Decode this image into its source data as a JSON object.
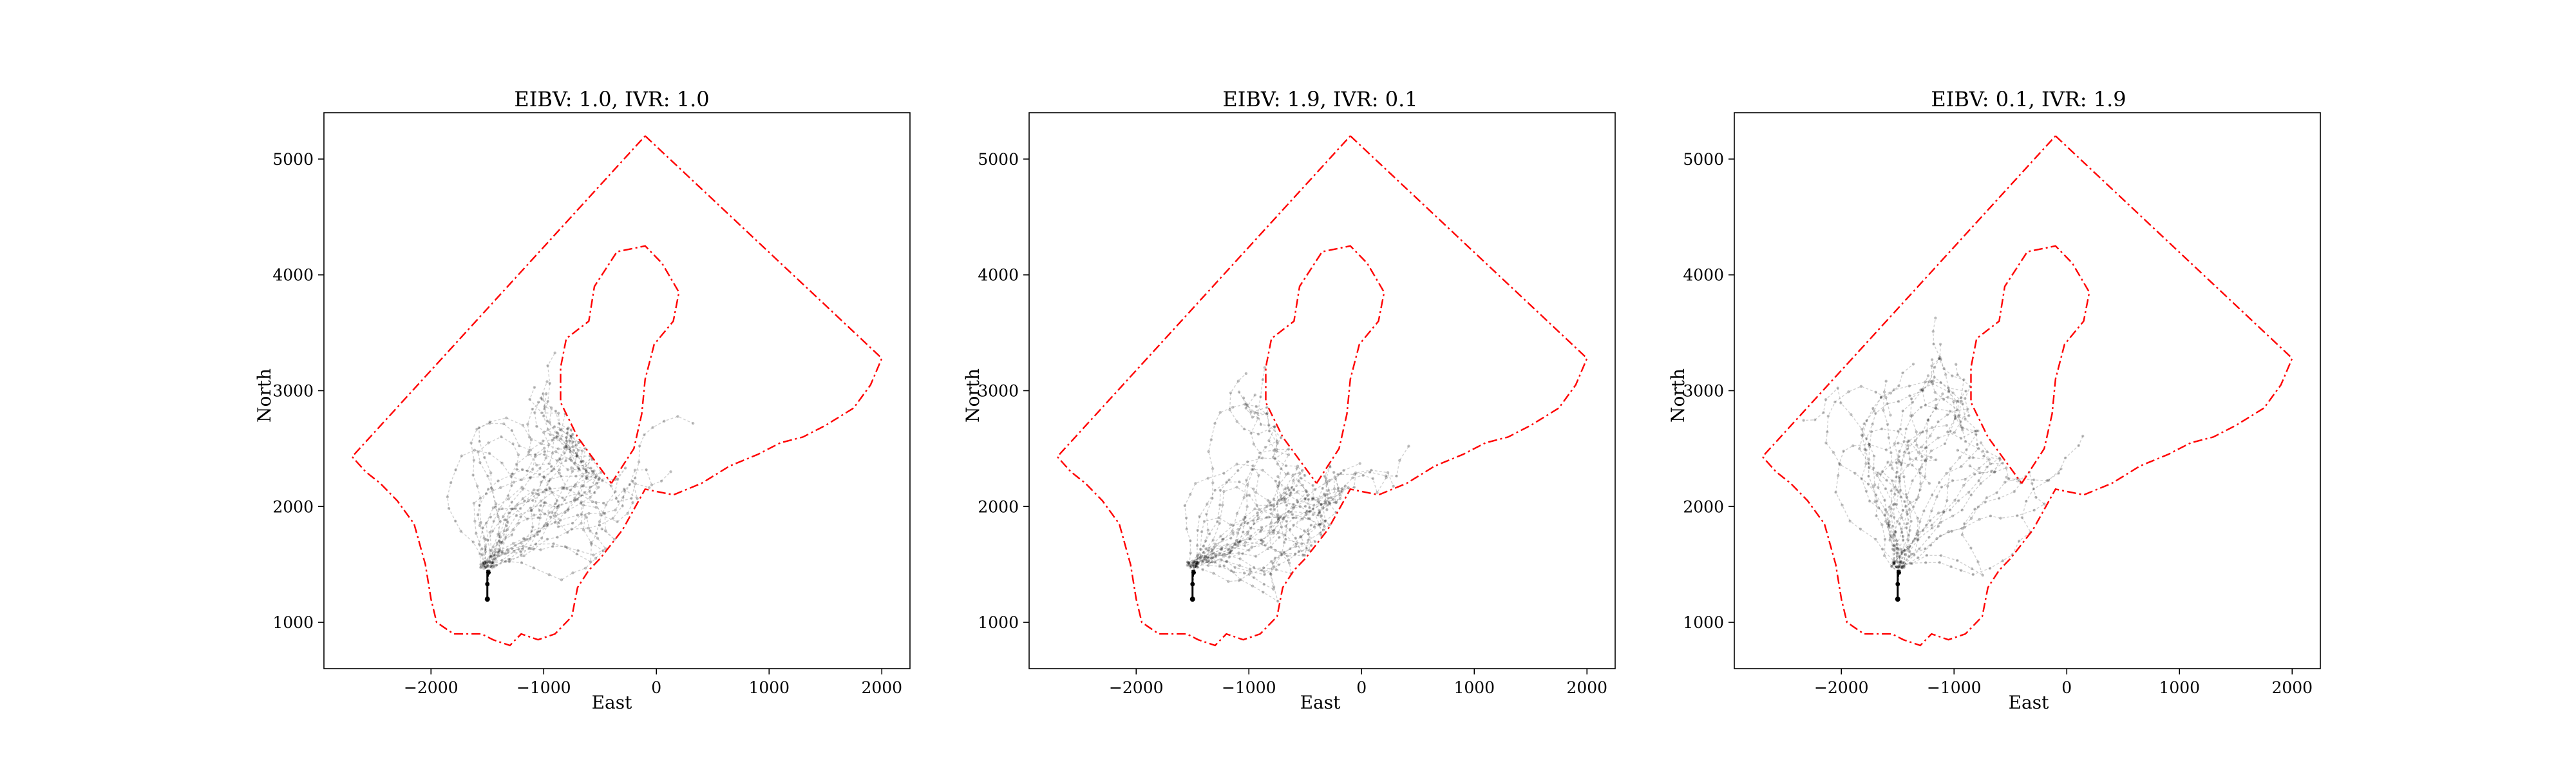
{
  "chart_data": [
    {
      "type": "line",
      "title": "EIBV: 1.0, IVR: 1.0",
      "xlabel": "East",
      "ylabel": "North",
      "xlim": [
        -2950,
        2250
      ],
      "ylim": [
        600,
        5400
      ],
      "xticks": [
        -2000,
        -1000,
        0,
        1000,
        2000
      ],
      "xtick_labels": [
        "−2000",
        "−1000",
        "0",
        "1000",
        "2000"
      ],
      "yticks": [
        1000,
        2000,
        3000,
        4000,
        5000
      ],
      "ytick_labels": [
        "1000",
        "2000",
        "3000",
        "4000",
        "5000"
      ],
      "grid": false,
      "series": [
        {
          "kind": "boundary",
          "color": "#ff0000",
          "style": "dash-dot",
          "points": [
            [
              -100,
              5200
            ],
            [
              2000,
              3280
            ],
            [
              1900,
              3050
            ],
            [
              1750,
              2850
            ],
            [
              1500,
              2700
            ],
            [
              1300,
              2600
            ],
            [
              1100,
              2550
            ],
            [
              900,
              2450
            ],
            [
              650,
              2350
            ],
            [
              400,
              2200
            ],
            [
              150,
              2100
            ],
            [
              -100,
              2150
            ],
            [
              -300,
              1800
            ],
            [
              -500,
              1550
            ],
            [
              -600,
              1450
            ],
            [
              -700,
              1300
            ],
            [
              -750,
              1050
            ],
            [
              -900,
              900
            ],
            [
              -1050,
              850
            ],
            [
              -1200,
              900
            ],
            [
              -1300,
              800
            ],
            [
              -1450,
              850
            ],
            [
              -1550,
              900
            ],
            [
              -1650,
              900
            ],
            [
              -1800,
              900
            ],
            [
              -1950,
              1000
            ],
            [
              -2000,
              1200
            ],
            [
              -2050,
              1500
            ],
            [
              -2150,
              1850
            ],
            [
              -2300,
              2050
            ],
            [
              -2450,
              2200
            ],
            [
              -2580,
              2300
            ],
            [
              -2700,
              2430
            ],
            [
              -100,
              5200
            ]
          ]
        },
        {
          "kind": "boundary",
          "color": "#ff0000",
          "style": "dash-dot",
          "points": [
            [
              -400,
              2200
            ],
            [
              -200,
              2500
            ],
            [
              -130,
              2800
            ],
            [
              -100,
              3100
            ],
            [
              -20,
              3400
            ],
            [
              150,
              3600
            ],
            [
              200,
              3850
            ],
            [
              50,
              4100
            ],
            [
              -100,
              4250
            ],
            [
              -350,
              4200
            ],
            [
              -550,
              3900
            ],
            [
              -600,
              3600
            ],
            [
              -800,
              3450
            ],
            [
              -850,
              3200
            ],
            [
              -850,
              2900
            ],
            [
              -700,
              2600
            ],
            [
              -550,
              2400
            ],
            [
              -400,
              2200
            ]
          ]
        },
        {
          "kind": "trajectories",
          "color": "#000000",
          "seed": 11,
          "count": 28,
          "start": [
            -1500,
            1200
          ],
          "lobes": [
            [
              -1300,
              2300
            ],
            [
              -300,
              2300
            ],
            [
              400,
              2900
            ]
          ]
        }
      ]
    },
    {
      "type": "line",
      "title": "EIBV: 1.9, IVR: 0.1",
      "xlabel": "East",
      "ylabel": "North",
      "xlim": [
        -2950,
        2250
      ],
      "ylim": [
        600,
        5400
      ],
      "xticks": [
        -2000,
        -1000,
        0,
        1000,
        2000
      ],
      "xtick_labels": [
        "−2000",
        "−1000",
        "0",
        "1000",
        "2000"
      ],
      "yticks": [
        1000,
        2000,
        3000,
        4000,
        5000
      ],
      "ytick_labels": [
        "1000",
        "2000",
        "3000",
        "4000",
        "5000"
      ],
      "grid": false,
      "series": [
        {
          "kind": "boundary",
          "color": "#ff0000",
          "style": "dash-dot",
          "points": [
            [
              -100,
              5200
            ],
            [
              2000,
              3280
            ],
            [
              1900,
              3050
            ],
            [
              1750,
              2850
            ],
            [
              1500,
              2700
            ],
            [
              1300,
              2600
            ],
            [
              1100,
              2550
            ],
            [
              900,
              2450
            ],
            [
              650,
              2350
            ],
            [
              400,
              2200
            ],
            [
              150,
              2100
            ],
            [
              -100,
              2150
            ],
            [
              -300,
              1800
            ],
            [
              -500,
              1550
            ],
            [
              -600,
              1450
            ],
            [
              -700,
              1300
            ],
            [
              -750,
              1050
            ],
            [
              -900,
              900
            ],
            [
              -1050,
              850
            ],
            [
              -1200,
              900
            ],
            [
              -1300,
              800
            ],
            [
              -1450,
              850
            ],
            [
              -1550,
              900
            ],
            [
              -1650,
              900
            ],
            [
              -1800,
              900
            ],
            [
              -1950,
              1000
            ],
            [
              -2000,
              1200
            ],
            [
              -2050,
              1500
            ],
            [
              -2150,
              1850
            ],
            [
              -2300,
              2050
            ],
            [
              -2450,
              2200
            ],
            [
              -2580,
              2300
            ],
            [
              -2700,
              2430
            ],
            [
              -100,
              5200
            ]
          ]
        },
        {
          "kind": "boundary",
          "color": "#ff0000",
          "style": "dash-dot",
          "points": [
            [
              -400,
              2200
            ],
            [
              -200,
              2500
            ],
            [
              -130,
              2800
            ],
            [
              -100,
              3100
            ],
            [
              -20,
              3400
            ],
            [
              150,
              3600
            ],
            [
              200,
              3850
            ],
            [
              50,
              4100
            ],
            [
              -100,
              4250
            ],
            [
              -350,
              4200
            ],
            [
              -550,
              3900
            ],
            [
              -600,
              3600
            ],
            [
              -800,
              3450
            ],
            [
              -850,
              3200
            ],
            [
              -850,
              2900
            ],
            [
              -700,
              2600
            ],
            [
              -550,
              2400
            ],
            [
              -400,
              2200
            ]
          ]
        },
        {
          "kind": "trajectories",
          "color": "#000000",
          "seed": 23,
          "count": 28,
          "start": [
            -1500,
            1200
          ],
          "lobes": [
            [
              -1200,
              2250
            ],
            [
              -400,
              2000
            ],
            [
              300,
              2300
            ]
          ]
        }
      ]
    },
    {
      "type": "line",
      "title": "EIBV: 0.1, IVR: 1.9",
      "xlabel": "East",
      "ylabel": "North",
      "xlim": [
        -2950,
        2250
      ],
      "ylim": [
        600,
        5400
      ],
      "xticks": [
        -2000,
        -1000,
        0,
        1000,
        2000
      ],
      "xtick_labels": [
        "−2000",
        "−1000",
        "0",
        "1000",
        "2000"
      ],
      "yticks": [
        1000,
        2000,
        3000,
        4000,
        5000
      ],
      "ytick_labels": [
        "1000",
        "2000",
        "3000",
        "4000",
        "5000"
      ],
      "grid": false,
      "series": [
        {
          "kind": "boundary",
          "color": "#ff0000",
          "style": "dash-dot",
          "points": [
            [
              -100,
              5200
            ],
            [
              2000,
              3280
            ],
            [
              1900,
              3050
            ],
            [
              1750,
              2850
            ],
            [
              1500,
              2700
            ],
            [
              1300,
              2600
            ],
            [
              1100,
              2550
            ],
            [
              900,
              2450
            ],
            [
              650,
              2350
            ],
            [
              400,
              2200
            ],
            [
              150,
              2100
            ],
            [
              -100,
              2150
            ],
            [
              -300,
              1800
            ],
            [
              -500,
              1550
            ],
            [
              -600,
              1450
            ],
            [
              -700,
              1300
            ],
            [
              -750,
              1050
            ],
            [
              -900,
              900
            ],
            [
              -1050,
              850
            ],
            [
              -1200,
              900
            ],
            [
              -1300,
              800
            ],
            [
              -1450,
              850
            ],
            [
              -1550,
              900
            ],
            [
              -1650,
              900
            ],
            [
              -1800,
              900
            ],
            [
              -1950,
              1000
            ],
            [
              -2000,
              1200
            ],
            [
              -2050,
              1500
            ],
            [
              -2150,
              1850
            ],
            [
              -2300,
              2050
            ],
            [
              -2450,
              2200
            ],
            [
              -2580,
              2300
            ],
            [
              -2700,
              2430
            ],
            [
              -100,
              5200
            ]
          ]
        },
        {
          "kind": "boundary",
          "color": "#ff0000",
          "style": "dash-dot",
          "points": [
            [
              -400,
              2200
            ],
            [
              -200,
              2500
            ],
            [
              -130,
              2800
            ],
            [
              -100,
              3100
            ],
            [
              -20,
              3400
            ],
            [
              150,
              3600
            ],
            [
              200,
              3850
            ],
            [
              50,
              4100
            ],
            [
              -100,
              4250
            ],
            [
              -350,
              4200
            ],
            [
              -550,
              3900
            ],
            [
              -600,
              3600
            ],
            [
              -800,
              3450
            ],
            [
              -850,
              3200
            ],
            [
              -850,
              2900
            ],
            [
              -700,
              2600
            ],
            [
              -550,
              2400
            ],
            [
              -400,
              2200
            ]
          ]
        },
        {
          "kind": "trajectories",
          "color": "#000000",
          "seed": 37,
          "count": 28,
          "start": [
            -1500,
            1200
          ],
          "lobes": [
            [
              -1400,
              2700
            ],
            [
              -700,
              3500
            ],
            [
              400,
              2700
            ]
          ]
        }
      ]
    }
  ]
}
